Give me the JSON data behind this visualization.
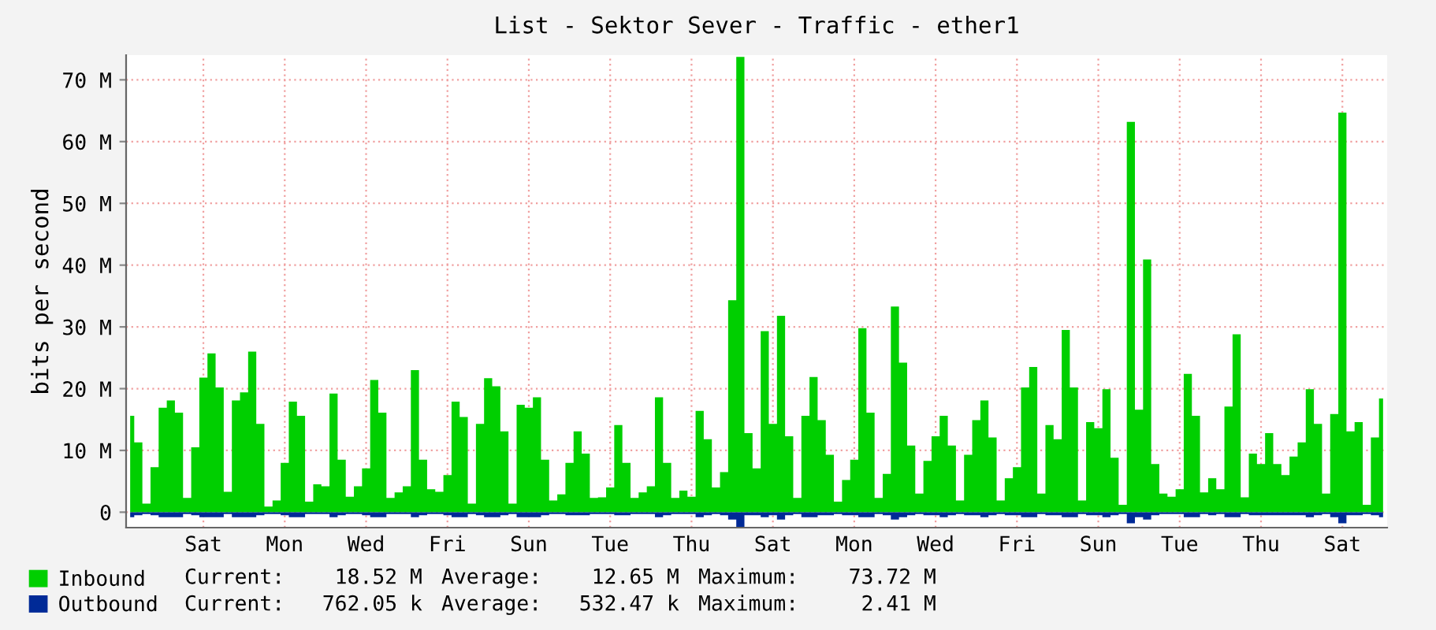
{
  "chart_data": {
    "type": "area",
    "title": "List - Sektor Sever - Traffic - ether1",
    "ylabel": "bits per second",
    "categories": [
      null,
      null,
      null,
      null,
      null,
      null,
      null,
      null,
      null,
      "Sat",
      null,
      null,
      null,
      null,
      null,
      null,
      null,
      null,
      null,
      "Mon",
      null,
      null,
      null,
      null,
      null,
      null,
      null,
      null,
      null,
      "Wed",
      null,
      null,
      null,
      null,
      null,
      null,
      null,
      null,
      null,
      "Fri",
      null,
      null,
      null,
      null,
      null,
      null,
      null,
      null,
      null,
      "Sun",
      null,
      null,
      null,
      null,
      null,
      null,
      null,
      null,
      null,
      "Tue",
      null,
      null,
      null,
      null,
      null,
      null,
      null,
      null,
      null,
      "Thu",
      null,
      null,
      null,
      null,
      null,
      null,
      null,
      null,
      null,
      "Sat",
      null,
      null,
      null,
      null,
      null,
      null,
      null,
      null,
      null,
      "Mon",
      null,
      null,
      null,
      null,
      null,
      null,
      null,
      null,
      null,
      "Wed",
      null,
      null,
      null,
      null,
      null,
      null,
      null,
      null,
      null,
      "Fri",
      null,
      null,
      null,
      null,
      null,
      null,
      null,
      null,
      null,
      "Sun",
      null,
      null,
      null,
      null,
      null,
      null,
      null,
      null,
      null,
      "Tue",
      null,
      null,
      null,
      null,
      null,
      null,
      null,
      null,
      null,
      "Thu",
      null,
      null,
      null,
      null,
      null,
      null,
      null,
      null,
      null,
      "Sat",
      null,
      null,
      null,
      null,
      null
    ],
    "annotations": [
      "Current:    18.52 M",
      "Average:    12.65 M",
      "Maximum:    73.72 M",
      "Current:   762.05 k",
      "Average:   532.47 k",
      "Maximum:     2.41 M"
    ],
    "series": [
      {
        "name": "Inbound",
        "color": "#00cf00",
        "values": [
          15.6,
          11.3,
          1.4,
          7.3,
          16.9,
          18.1,
          16.1,
          2.3,
          10.5,
          21.8,
          25.7,
          20.2,
          3.3,
          18.1,
          19.4,
          26.0,
          14.3,
          0.9,
          1.9,
          8.0,
          17.9,
          15.6,
          1.7,
          4.5,
          4.2,
          19.2,
          8.5,
          2.5,
          4.2,
          7.1,
          21.4,
          16.1,
          2.3,
          3.2,
          4.2,
          23.0,
          8.5,
          3.7,
          3.3,
          6.0,
          17.9,
          15.4,
          1.4,
          14.3,
          21.7,
          20.4,
          13.1,
          1.4,
          17.4,
          16.9,
          18.6,
          8.5,
          1.9,
          2.9,
          8.0,
          13.1,
          9.5,
          2.3,
          2.4,
          4.0,
          14.1,
          8.0,
          2.3,
          3.2,
          4.2,
          18.6,
          8.0,
          2.3,
          3.5,
          2.5,
          16.4,
          11.8,
          4.0,
          6.5,
          34.3,
          73.7,
          12.8,
          7.1,
          29.3,
          14.3,
          31.8,
          12.3,
          2.3,
          15.6,
          21.9,
          14.9,
          9.3,
          1.7,
          5.2,
          8.5,
          29.8,
          16.1,
          2.3,
          6.2,
          33.3,
          24.2,
          10.8,
          3.0,
          8.3,
          12.3,
          15.6,
          10.8,
          1.9,
          9.3,
          14.9,
          18.1,
          12.1,
          1.9,
          5.5,
          7.3,
          20.2,
          23.5,
          3.0,
          14.1,
          11.8,
          29.5,
          20.2,
          1.9,
          14.6,
          13.6,
          19.9,
          8.8,
          1.2,
          63.2,
          16.6,
          40.9,
          7.8,
          3.0,
          2.5,
          3.7,
          22.4,
          15.6,
          3.2,
          5.5,
          3.7,
          17.1,
          28.8,
          2.4,
          9.5,
          7.8,
          12.8,
          7.8,
          6.0,
          9.0,
          11.3,
          19.9,
          14.3,
          3.0,
          15.9,
          64.7,
          13.1,
          14.6,
          1.2,
          12.1,
          18.4
        ]
      },
      {
        "name": "Outbound",
        "color": "#002a97",
        "values": [
          -0.8,
          -0.5,
          -0.3,
          -0.5,
          -0.8,
          -0.8,
          -0.8,
          -0.3,
          -0.5,
          -0.8,
          -0.8,
          -0.8,
          -0.3,
          -0.8,
          -0.8,
          -0.8,
          -0.5,
          -0.3,
          -0.3,
          -0.5,
          -0.8,
          -0.8,
          -0.3,
          -0.3,
          -0.3,
          -0.8,
          -0.5,
          -0.3,
          -0.3,
          -0.5,
          -0.8,
          -0.8,
          -0.3,
          -0.3,
          -0.3,
          -0.8,
          -0.5,
          -0.3,
          -0.3,
          -0.5,
          -0.8,
          -0.8,
          -0.3,
          -0.5,
          -0.8,
          -0.8,
          -0.5,
          -0.3,
          -0.8,
          -0.8,
          -0.8,
          -0.5,
          -0.3,
          -0.3,
          -0.5,
          -0.5,
          -0.5,
          -0.3,
          -0.3,
          -0.3,
          -0.5,
          -0.5,
          -0.3,
          -0.3,
          -0.3,
          -0.8,
          -0.5,
          -0.3,
          -0.3,
          -0.3,
          -0.8,
          -0.5,
          -0.3,
          -0.5,
          -1.2,
          -2.4,
          -0.5,
          -0.5,
          -0.8,
          -0.5,
          -1.2,
          -0.5,
          -0.3,
          -0.8,
          -0.8,
          -0.5,
          -0.5,
          -0.3,
          -0.5,
          -0.5,
          -0.8,
          -0.8,
          -0.3,
          -0.5,
          -1.2,
          -0.8,
          -0.5,
          -0.3,
          -0.5,
          -0.5,
          -0.8,
          -0.5,
          -0.3,
          -0.5,
          -0.5,
          -0.8,
          -0.5,
          -0.3,
          -0.5,
          -0.5,
          -0.8,
          -0.8,
          -0.3,
          -0.5,
          -0.5,
          -0.8,
          -0.8,
          -0.3,
          -0.5,
          -0.5,
          -0.8,
          -0.5,
          -0.3,
          -1.8,
          -0.8,
          -1.2,
          -0.5,
          -0.3,
          -0.3,
          -0.3,
          -0.8,
          -0.8,
          -0.3,
          -0.5,
          -0.3,
          -0.8,
          -0.8,
          -0.3,
          -0.5,
          -0.5,
          -0.5,
          -0.5,
          -0.5,
          -0.5,
          -0.5,
          -0.8,
          -0.5,
          -0.3,
          -0.8,
          -1.8,
          -0.5,
          -0.5,
          -0.3,
          -0.5,
          -0.8
        ]
      }
    ],
    "ylim": [
      -2.5,
      74
    ],
    "yticks": [
      0,
      {
        "value": 10,
        "label": "10 M"
      },
      {
        "value": 20,
        "label": "20 M"
      },
      {
        "value": 30,
        "label": "30 M"
      },
      {
        "value": 40,
        "label": "40 M"
      },
      {
        "value": 50,
        "label": "50 M"
      },
      {
        "value": 60,
        "label": "60 M"
      },
      {
        "value": 70,
        "label": "70 M"
      }
    ],
    "grid": true,
    "legend": "bottom"
  }
}
